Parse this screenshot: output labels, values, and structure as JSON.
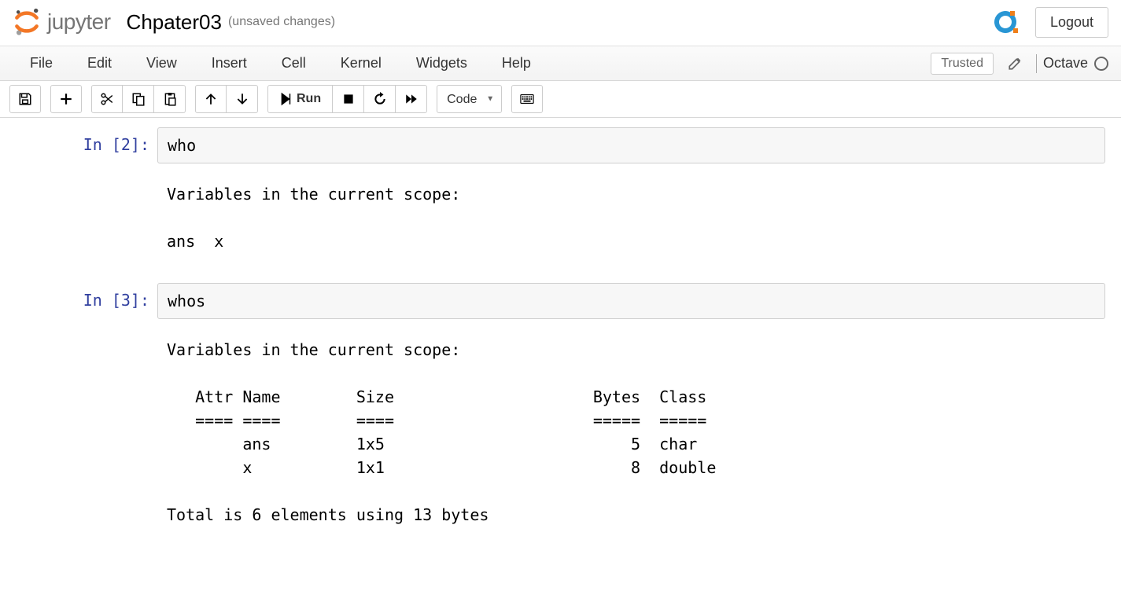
{
  "header": {
    "logo_word": "jupyter",
    "notebook_name": "Chpater03",
    "save_status": "(unsaved changes)",
    "logout_label": "Logout"
  },
  "menu": {
    "items": [
      "File",
      "Edit",
      "View",
      "Insert",
      "Cell",
      "Kernel",
      "Widgets",
      "Help"
    ],
    "trusted_label": "Trusted",
    "kernel_name": "Octave"
  },
  "toolbar": {
    "celltype_selected": "Code",
    "run_label": "Run"
  },
  "cells": [
    {
      "prompt": "In [2]:",
      "input": "who",
      "output": "Variables in the current scope:\n\nans  x\n"
    },
    {
      "prompt": "In [3]:",
      "input": "whos",
      "output": "Variables in the current scope:\n\n   Attr Name        Size                     Bytes  Class\n   ==== ====        ====                     =====  =====\n        ans         1x5                          5  char\n        x           1x1                          8  double\n\nTotal is 6 elements using 13 bytes"
    }
  ],
  "colors": {
    "prompt": "#303f9f",
    "border": "#cfcfcf",
    "input_bg": "#f7f7f7",
    "jupyter_orange": "#f37726",
    "octave_blue": "#2996d4",
    "octave_orange": "#ef7f1a"
  }
}
